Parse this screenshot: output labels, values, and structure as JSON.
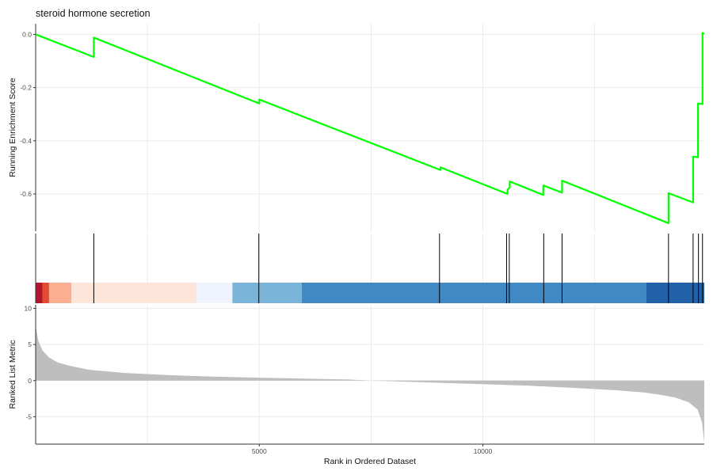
{
  "chart_data": {
    "type": "line",
    "title": "steroid hormone secretion",
    "x_label": "Rank in Ordered Dataset",
    "x_range": [
      0,
      14950
    ],
    "x_ticks": [
      5000,
      10000
    ],
    "x_tick_labels": [
      "5000",
      "10000"
    ],
    "grid": true,
    "panels": [
      {
        "name": "running-enrichment",
        "y_label": "Running Enrichment Score",
        "y_range": [
          -0.74,
          0.04
        ],
        "y_ticks": [
          0.0,
          -0.2,
          -0.4,
          -0.6
        ],
        "y_tick_labels": [
          "0.0",
          "-0.2",
          "-0.4",
          "-0.6"
        ],
        "line_color": "#00ff00",
        "x": [
          0,
          1300,
          1300,
          5000,
          5000,
          9050,
          9050,
          10550,
          10550,
          10600,
          10600,
          11350,
          11350,
          11770,
          11770,
          14150,
          14150,
          14700,
          14700,
          14810,
          14810,
          14910,
          14910,
          14950
        ],
        "y": [
          0.0,
          -0.085,
          -0.012,
          -0.26,
          -0.245,
          -0.51,
          -0.5,
          -0.6,
          -0.585,
          -0.575,
          -0.553,
          -0.604,
          -0.568,
          -0.595,
          -0.55,
          -0.71,
          -0.597,
          -0.632,
          -0.46,
          -0.462,
          -0.26,
          -0.262,
          0.005,
          0.003
        ]
      },
      {
        "name": "hits",
        "hit_positions": [
          1300,
          4990,
          9030,
          10530,
          10590,
          11360,
          11770,
          14150,
          14700,
          14820,
          14910
        ],
        "color_bar": [
          {
            "from": 0,
            "to": 150,
            "color": "#b2182b"
          },
          {
            "from": 150,
            "to": 300,
            "color": "#e34a33"
          },
          {
            "from": 300,
            "to": 800,
            "color": "#fcae91"
          },
          {
            "from": 800,
            "to": 3600,
            "color": "#fee5d9"
          },
          {
            "from": 3600,
            "to": 4400,
            "color": "#eff3ff"
          },
          {
            "from": 4400,
            "to": 5950,
            "color": "#7ab4d8"
          },
          {
            "from": 5950,
            "to": 13650,
            "color": "#4189c4"
          },
          {
            "from": 13650,
            "to": 14950,
            "color": "#2061a8"
          }
        ]
      },
      {
        "name": "ranked-list-metric",
        "y_label": "Ranked List Metric",
        "y_range": [
          -8.8,
          10.5
        ],
        "y_ticks": [
          10,
          5,
          0,
          -5
        ],
        "y_tick_labels": [
          "10",
          "5",
          "0",
          "-5"
        ],
        "fill_color": "#bebebe",
        "x": [
          0,
          20,
          60,
          150,
          300,
          500,
          800,
          1200,
          2000,
          3000,
          4000,
          5000,
          6000,
          7000,
          7480,
          8000,
          9000,
          10000,
          11000,
          12000,
          13000,
          13600,
          14000,
          14300,
          14600,
          14800,
          14900,
          14950
        ],
        "y": [
          7.5,
          6.9,
          5.5,
          4.2,
          3.2,
          2.5,
          2.0,
          1.5,
          1.05,
          0.75,
          0.55,
          0.4,
          0.28,
          0.15,
          0.0,
          -0.1,
          -0.3,
          -0.5,
          -0.7,
          -1.0,
          -1.35,
          -1.65,
          -2.0,
          -2.35,
          -3.0,
          -4.0,
          -5.8,
          -8.6
        ]
      }
    ]
  }
}
